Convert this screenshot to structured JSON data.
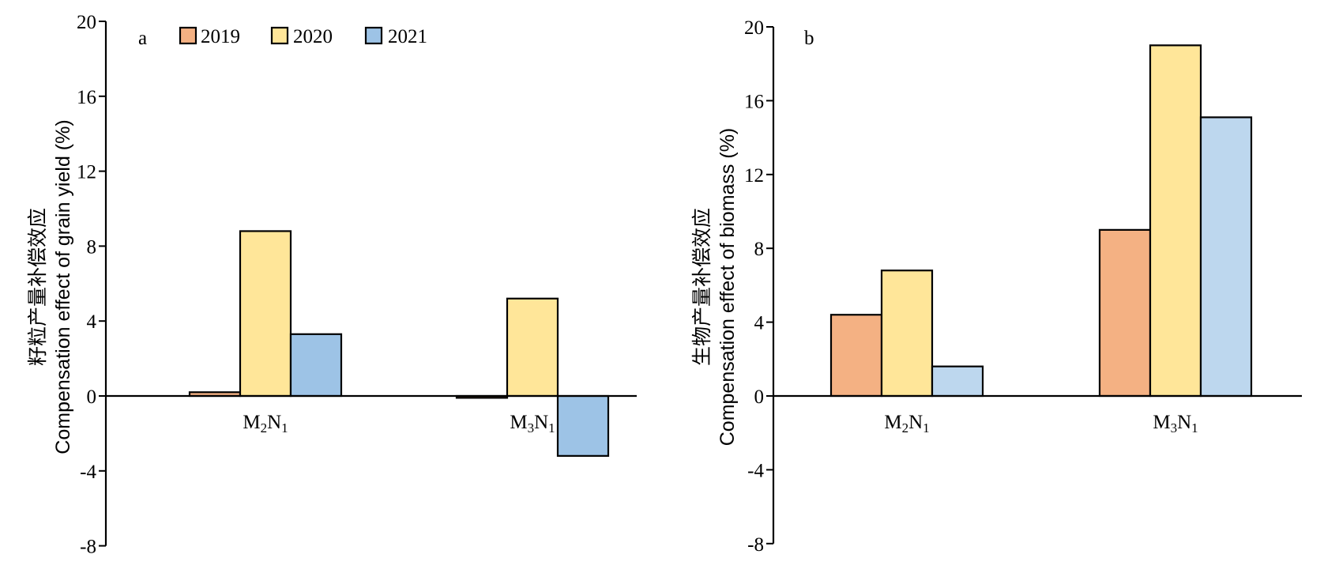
{
  "chart_data": [
    {
      "panel_label": "a",
      "type": "bar",
      "ylabel_cn": "籽粒产量补偿效应",
      "ylabel_en": "Compensation effect of grain yield (%)",
      "ylim": [
        -8,
        20
      ],
      "yticks": [
        -8,
        -4,
        0,
        4,
        8,
        12,
        16,
        20
      ],
      "categories": [
        {
          "base": "M",
          "sub1": "2",
          "mid": "N",
          "sub2": "1"
        },
        {
          "base": "M",
          "sub1": "3",
          "mid": "N",
          "sub2": "1"
        }
      ],
      "series": [
        {
          "name": "2019",
          "values": [
            0.2,
            -0.1
          ]
        },
        {
          "name": "2020",
          "values": [
            8.8,
            5.2
          ]
        },
        {
          "name": "2021",
          "values": [
            3.3,
            -3.2
          ]
        }
      ],
      "legend": "top",
      "colors": [
        "#f4b183",
        "#ffe699",
        "#9dc3e6"
      ]
    },
    {
      "panel_label": "b",
      "type": "bar",
      "ylabel_cn": "生物产量补偿效应",
      "ylabel_en": "Compensation effect of biomass (%)",
      "ylim": [
        -8,
        20
      ],
      "yticks": [
        -8,
        -4,
        0,
        4,
        8,
        12,
        16,
        20
      ],
      "categories": [
        {
          "base": "M",
          "sub1": "2",
          "mid": "N",
          "sub2": "1"
        },
        {
          "base": "M",
          "sub1": "3",
          "mid": "N",
          "sub2": "1"
        }
      ],
      "series": [
        {
          "name": "2019",
          "values": [
            4.4,
            9.0
          ]
        },
        {
          "name": "2020",
          "values": [
            6.8,
            19.0
          ]
        },
        {
          "name": "2021",
          "values": [
            1.6,
            15.1
          ]
        }
      ],
      "legend": "none",
      "colors": [
        "#f4b183",
        "#ffe699",
        "#bdd7ee"
      ]
    }
  ]
}
